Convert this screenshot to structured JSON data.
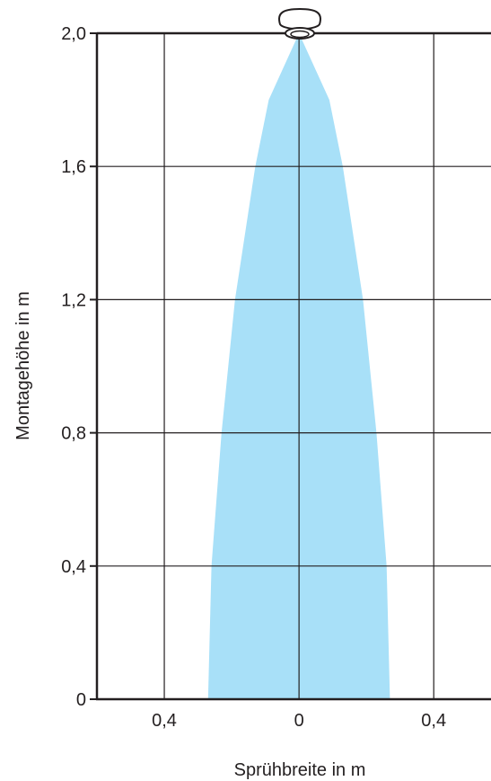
{
  "chart_data": {
    "type": "area",
    "title": "",
    "xlabel": "Sprühbreite in m",
    "ylabel": "Montagehöhe in m",
    "xlim": [
      -0.6,
      0.57
    ],
    "ylim": [
      0,
      2.0
    ],
    "x_ticks": [
      -0.4,
      0,
      0.4
    ],
    "x_tick_labels": [
      "0,4",
      "0",
      "0,4"
    ],
    "y_ticks": [
      0,
      0.4,
      0.8,
      1.2,
      1.6,
      2.0
    ],
    "y_tick_labels": [
      "0",
      "0,4",
      "0,8",
      "1,2",
      "1,6",
      "2,0"
    ],
    "grid": true,
    "series": [
      {
        "points": [
          {
            "height": 2.0,
            "half_width": 0.0
          },
          {
            "height": 1.8,
            "half_width": 0.09
          },
          {
            "height": 1.6,
            "half_width": 0.13
          },
          {
            "height": 1.2,
            "half_width": 0.19
          },
          {
            "height": 0.8,
            "half_width": 0.23
          },
          {
            "height": 0.4,
            "half_width": 0.26
          },
          {
            "height": 0.0,
            "half_width": 0.27
          }
        ]
      }
    ],
    "colors": {
      "spray": "#a8e0f8",
      "grid": "#231f20",
      "axis": "#231f20"
    },
    "icon": "nozzle-icon"
  }
}
